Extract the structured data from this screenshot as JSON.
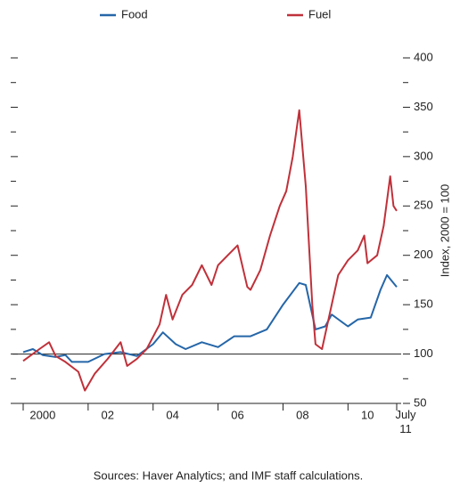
{
  "chart_data": {
    "type": "line",
    "y_label": "Index, 2000 = 100",
    "source": "Sources: Haver Analytics; and IMF staff calculations.",
    "xlim": [
      2000,
      2011.5
    ],
    "xticks": [
      2000,
      {
        "value": 2002,
        "label": "02"
      },
      {
        "value": 2004,
        "label": "04"
      },
      {
        "value": 2006,
        "label": "06"
      },
      {
        "value": 2008,
        "label": "08"
      },
      {
        "value": 2010,
        "label": "10"
      },
      {
        "value": 2011.5,
        "label": "July 11"
      }
    ],
    "ylim": [
      50,
      400
    ],
    "yticks": [
      50,
      100,
      150,
      200,
      250,
      300,
      350,
      400
    ],
    "reference_line": 100,
    "series": [
      {
        "name": "Food",
        "color": "#2566a8",
        "x": [
          2000,
          2000.3,
          2000.6,
          2001,
          2001.3,
          2001.5,
          2002,
          2002.5,
          2003,
          2003.5,
          2004,
          2004.3,
          2004.7,
          2005,
          2005.5,
          2006,
          2006.5,
          2007,
          2007.5,
          2008,
          2008.5,
          2008.7,
          2009,
          2009.3,
          2009.5,
          2010,
          2010.3,
          2010.7,
          2011,
          2011.2,
          2011.5
        ],
        "values": [
          102,
          105,
          99,
          97,
          99,
          92,
          92,
          100,
          102,
          98,
          110,
          122,
          110,
          105,
          112,
          107,
          118,
          118,
          125,
          150,
          172,
          170,
          125,
          128,
          140,
          128,
          135,
          137,
          165,
          180,
          168
        ]
      },
      {
        "name": "Fuel",
        "color": "#c0313a",
        "x": [
          2000,
          2000.5,
          2000.8,
          2001,
          2001.3,
          2001.7,
          2001.9,
          2002.2,
          2002.6,
          2003,
          2003.2,
          2003.5,
          2003.8,
          2004.2,
          2004.4,
          2004.6,
          2004.9,
          2005.2,
          2005.5,
          2005.8,
          2006,
          2006.3,
          2006.6,
          2006.9,
          2007,
          2007.3,
          2007.6,
          2007.9,
          2008.1,
          2008.3,
          2008.5,
          2008.7,
          2008.9,
          2009,
          2009.2,
          2009.5,
          2009.7,
          2010,
          2010.3,
          2010.5,
          2010.6,
          2010.9,
          2011.1,
          2011.3,
          2011.4,
          2011.5
        ],
        "values": [
          93,
          105,
          112,
          98,
          92,
          82,
          63,
          80,
          95,
          112,
          88,
          95,
          105,
          130,
          160,
          135,
          160,
          170,
          190,
          170,
          190,
          200,
          210,
          168,
          165,
          185,
          220,
          250,
          265,
          300,
          347,
          270,
          150,
          110,
          105,
          150,
          180,
          195,
          205,
          220,
          192,
          200,
          230,
          280,
          250,
          245
        ]
      }
    ]
  }
}
